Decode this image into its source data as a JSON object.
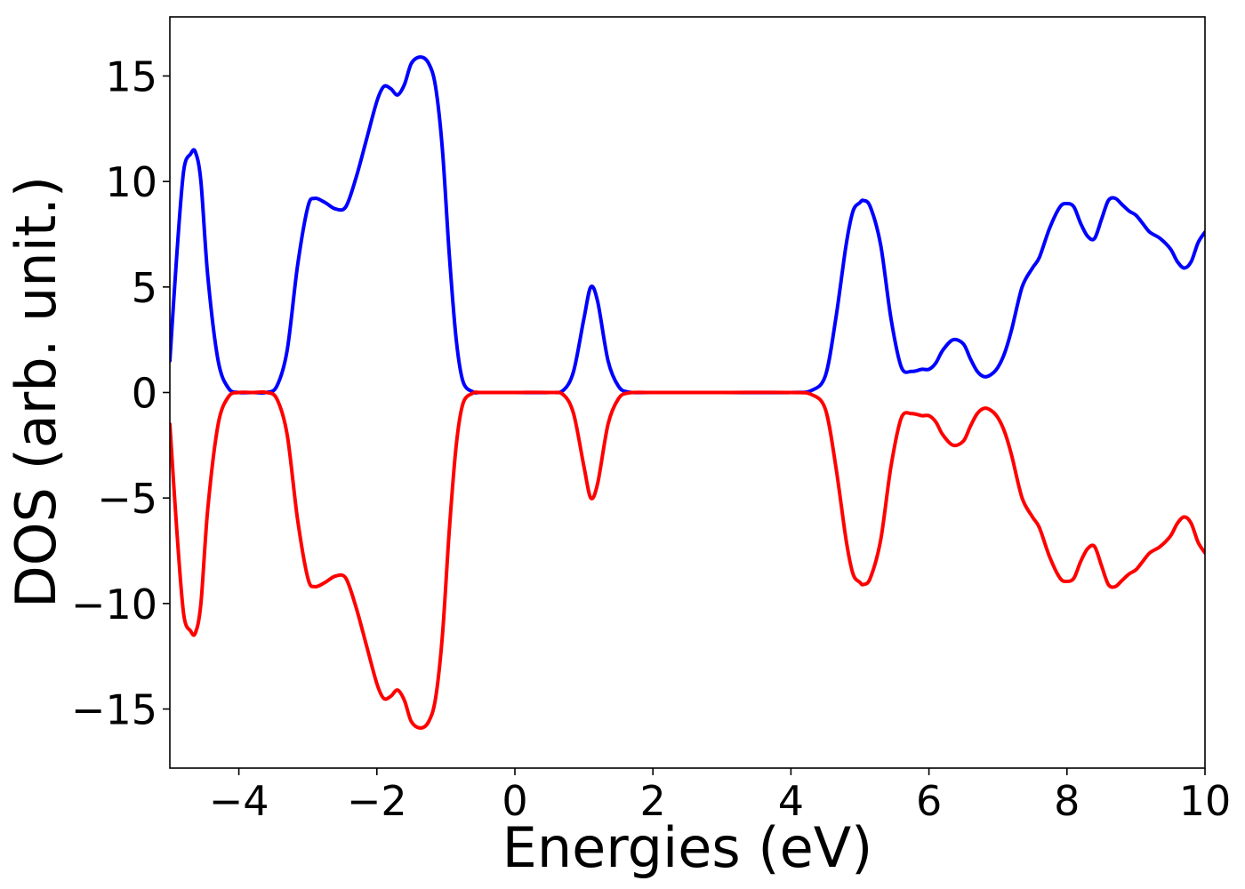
{
  "chart_data": {
    "type": "line",
    "title": "",
    "xlabel": "Energies (eV)",
    "ylabel": "DOS (arb. unit.)",
    "xlim": [
      -5,
      10
    ],
    "ylim": [
      -17.8,
      17.8
    ],
    "grid": false,
    "legend": "none",
    "x_ticks": [
      -4,
      -2,
      0,
      2,
      4,
      6,
      8,
      10
    ],
    "x_tick_labels": [
      "−4",
      "−2",
      "0",
      "2",
      "4",
      "6",
      "8",
      "10"
    ],
    "y_ticks": [
      -15,
      -10,
      -5,
      0,
      5,
      10,
      15
    ],
    "y_tick_labels": [
      "−15",
      "−10",
      "−5",
      "0",
      "5",
      "10",
      "15"
    ],
    "series": [
      {
        "color": "#0000ff",
        "x": [
          -5.0,
          -4.9,
          -4.8,
          -4.7,
          -4.63,
          -4.55,
          -4.45,
          -4.3,
          -4.15,
          -4.0,
          -3.8,
          -3.6,
          -3.45,
          -3.3,
          -3.15,
          -3.0,
          -2.9,
          -2.75,
          -2.6,
          -2.45,
          -2.3,
          -2.15,
          -2.0,
          -1.9,
          -1.8,
          -1.7,
          -1.6,
          -1.5,
          -1.37,
          -1.25,
          -1.15,
          -1.05,
          -0.95,
          -0.85,
          -0.75,
          -0.6,
          -0.5,
          0.0,
          0.5,
          0.7,
          0.85,
          1.0,
          1.1,
          1.2,
          1.35,
          1.5,
          1.65,
          2.0,
          3.0,
          4.0,
          4.3,
          4.5,
          4.65,
          4.8,
          4.9,
          5.0,
          5.05,
          5.15,
          5.3,
          5.45,
          5.6,
          5.75,
          5.9,
          6.0,
          6.1,
          6.2,
          6.35,
          6.5,
          6.6,
          6.7,
          6.8,
          6.9,
          7.0,
          7.1,
          7.2,
          7.35,
          7.5,
          7.6,
          7.75,
          7.9,
          8.0,
          8.1,
          8.2,
          8.3,
          8.4,
          8.5,
          8.6,
          8.7,
          8.8,
          8.9,
          9.0,
          9.1,
          9.2,
          9.35,
          9.5,
          9.6,
          9.7,
          9.8,
          9.9,
          10.0
        ],
        "y": [
          1.5,
          6.5,
          10.5,
          11.3,
          11.4,
          10.0,
          5.5,
          1.5,
          0.2,
          0.0,
          0.0,
          0.0,
          0.3,
          2.0,
          6.0,
          8.8,
          9.2,
          9.0,
          8.7,
          8.8,
          10.2,
          12.0,
          13.8,
          14.5,
          14.4,
          14.1,
          14.6,
          15.6,
          15.9,
          15.6,
          14.5,
          11.5,
          6.5,
          2.5,
          0.5,
          0.02,
          0.0,
          0.0,
          0.0,
          0.1,
          1.0,
          3.5,
          5.0,
          4.3,
          1.5,
          0.3,
          0.02,
          0.0,
          0.0,
          0.0,
          0.1,
          0.8,
          3.5,
          7.0,
          8.6,
          9.0,
          9.1,
          8.8,
          7.0,
          3.5,
          1.2,
          1.0,
          1.1,
          1.1,
          1.4,
          2.0,
          2.5,
          2.3,
          1.6,
          1.0,
          0.75,
          0.85,
          1.2,
          1.9,
          3.0,
          5.0,
          5.9,
          6.4,
          7.8,
          8.8,
          8.95,
          8.8,
          8.0,
          7.4,
          7.3,
          8.2,
          9.1,
          9.2,
          8.9,
          8.6,
          8.4,
          8.0,
          7.6,
          7.3,
          6.8,
          6.2,
          5.9,
          6.2,
          7.1,
          7.6
        ]
      },
      {
        "color": "#ff0000",
        "x": [
          -5.0,
          -4.9,
          -4.8,
          -4.7,
          -4.63,
          -4.55,
          -4.45,
          -4.3,
          -4.15,
          -4.0,
          -3.8,
          -3.6,
          -3.45,
          -3.3,
          -3.15,
          -3.0,
          -2.9,
          -2.75,
          -2.6,
          -2.45,
          -2.3,
          -2.15,
          -2.0,
          -1.9,
          -1.8,
          -1.7,
          -1.6,
          -1.5,
          -1.37,
          -1.25,
          -1.15,
          -1.05,
          -0.95,
          -0.85,
          -0.75,
          -0.6,
          -0.5,
          0.0,
          0.5,
          0.7,
          0.85,
          1.0,
          1.1,
          1.2,
          1.35,
          1.5,
          1.65,
          2.0,
          3.0,
          4.0,
          4.3,
          4.5,
          4.65,
          4.8,
          4.9,
          5.0,
          5.05,
          5.15,
          5.3,
          5.45,
          5.6,
          5.75,
          5.9,
          6.0,
          6.1,
          6.2,
          6.35,
          6.5,
          6.6,
          6.7,
          6.8,
          6.9,
          7.0,
          7.1,
          7.2,
          7.35,
          7.5,
          7.6,
          7.75,
          7.9,
          8.0,
          8.1,
          8.2,
          8.3,
          8.4,
          8.5,
          8.6,
          8.7,
          8.8,
          8.9,
          9.0,
          9.1,
          9.2,
          9.35,
          9.5,
          9.6,
          9.7,
          9.8,
          9.9,
          10.0
        ],
        "y": [
          -1.5,
          -6.5,
          -10.5,
          -11.3,
          -11.4,
          -10.0,
          -5.5,
          -1.5,
          -0.2,
          0.0,
          0.0,
          0.0,
          -0.3,
          -2.0,
          -6.0,
          -8.8,
          -9.2,
          -9.0,
          -8.7,
          -8.8,
          -10.2,
          -12.0,
          -13.8,
          -14.5,
          -14.4,
          -14.1,
          -14.6,
          -15.6,
          -15.9,
          -15.6,
          -14.5,
          -11.5,
          -6.5,
          -2.5,
          -0.5,
          -0.02,
          0.0,
          0.0,
          0.0,
          -0.1,
          -1.0,
          -3.5,
          -5.0,
          -4.3,
          -1.5,
          -0.3,
          -0.02,
          0.0,
          0.0,
          0.0,
          -0.1,
          -0.8,
          -3.5,
          -7.0,
          -8.6,
          -9.0,
          -9.1,
          -8.8,
          -7.0,
          -3.5,
          -1.2,
          -1.0,
          -1.1,
          -1.1,
          -1.4,
          -2.0,
          -2.5,
          -2.3,
          -1.6,
          -1.0,
          -0.75,
          -0.85,
          -1.2,
          -1.9,
          -3.0,
          -5.0,
          -5.9,
          -6.4,
          -7.8,
          -8.8,
          -8.95,
          -8.8,
          -8.0,
          -7.4,
          -7.3,
          -8.2,
          -9.1,
          -9.2,
          -8.9,
          -8.6,
          -8.4,
          -8.0,
          -7.6,
          -7.3,
          -6.8,
          -6.2,
          -5.9,
          -6.2,
          -7.1,
          -7.6
        ]
      }
    ]
  }
}
